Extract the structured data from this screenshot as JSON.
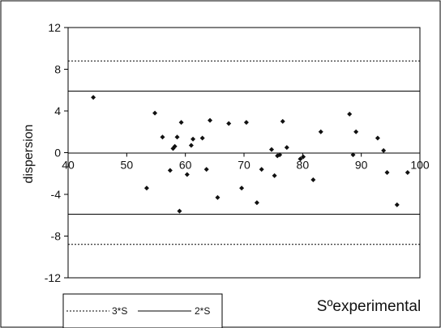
{
  "chart_data": {
    "type": "scatter",
    "title": "",
    "xlabel": "Sºexperimental",
    "ylabel": "dispersion",
    "xlim": [
      40,
      100
    ],
    "ylim": [
      -12,
      12
    ],
    "x_ticks": [
      40,
      50,
      60,
      70,
      80,
      90,
      100
    ],
    "y_ticks": [
      12,
      8,
      4,
      0,
      -4,
      -8,
      -12
    ],
    "x_tick_labels": [
      "40",
      "50",
      "60",
      "70",
      "80",
      "90",
      "100"
    ],
    "y_tick_labels": [
      "12",
      "8",
      "4",
      "0",
      "-4",
      "-8",
      "-12"
    ],
    "grid": false,
    "legend_position": "bottom-left",
    "legend": [
      {
        "label": "3*S",
        "style": "dotted"
      },
      {
        "label": "2*S",
        "style": "solid"
      }
    ],
    "reference_lines": [
      {
        "label": "3*S",
        "style": "dotted",
        "values": [
          8.8,
          -8.8
        ]
      },
      {
        "label": "2*S",
        "style": "solid",
        "values": [
          5.9,
          -5.9
        ]
      }
    ],
    "points": [
      [
        44.3,
        5.3
      ],
      [
        53.4,
        -3.4
      ],
      [
        54.8,
        3.8
      ],
      [
        56.1,
        1.5
      ],
      [
        57.4,
        -1.7
      ],
      [
        57.9,
        0.4
      ],
      [
        58.2,
        0.6
      ],
      [
        58.6,
        1.5
      ],
      [
        59.0,
        -5.6
      ],
      [
        59.3,
        2.9
      ],
      [
        60.3,
        -2.1
      ],
      [
        61.0,
        0.7
      ],
      [
        61.3,
        1.3
      ],
      [
        62.9,
        1.4
      ],
      [
        63.6,
        -1.6
      ],
      [
        64.2,
        3.1
      ],
      [
        65.5,
        -4.3
      ],
      [
        67.4,
        2.8
      ],
      [
        69.6,
        -3.4
      ],
      [
        70.4,
        2.9
      ],
      [
        72.2,
        -4.8
      ],
      [
        73.0,
        -1.6
      ],
      [
        74.7,
        0.3
      ],
      [
        75.2,
        -2.2
      ],
      [
        75.7,
        -0.3
      ],
      [
        76.1,
        -0.2
      ],
      [
        76.6,
        3.0
      ],
      [
        77.3,
        0.5
      ],
      [
        79.6,
        -0.6
      ],
      [
        80.1,
        -0.4
      ],
      [
        81.8,
        -2.6
      ],
      [
        83.1,
        2.0
      ],
      [
        88.0,
        3.7
      ],
      [
        88.6,
        -0.2
      ],
      [
        89.1,
        2.0
      ],
      [
        92.8,
        1.4
      ],
      [
        93.8,
        0.2
      ],
      [
        94.4,
        -1.9
      ],
      [
        96.1,
        -5.0
      ],
      [
        97.9,
        -1.9
      ]
    ],
    "colors": {
      "marker": "#111111",
      "axis": "#000000",
      "background": "#ffffff"
    }
  }
}
